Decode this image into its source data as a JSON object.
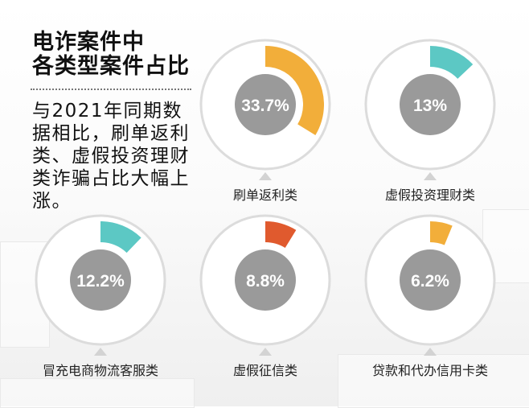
{
  "title": {
    "line1": "电诈案件中",
    "line2": "各类型案件占比"
  },
  "description": "与2021年同期数据相比，刷单返利类、虚假投资理财类诈骗占比大幅上涨。",
  "chart_data": {
    "type": "pie",
    "unit": "%",
    "items": [
      {
        "label": "刷单返利类",
        "value": 33.7,
        "value_label": "33.7%",
        "color": "#F2AE3A"
      },
      {
        "label": "虚假投资理财类",
        "value": 13,
        "value_label": "13%",
        "color": "#5CC8C4"
      },
      {
        "label": "冒充电商物流客服类",
        "value": 12.2,
        "value_label": "12.2%",
        "color": "#5CC8C4"
      },
      {
        "label": "虚假征信类",
        "value": 8.8,
        "value_label": "8.8%",
        "color": "#E05A2E"
      },
      {
        "label": "贷款和代办信用卡类",
        "value": 6.2,
        "value_label": "6.2%",
        "color": "#F2AE3A"
      }
    ]
  }
}
